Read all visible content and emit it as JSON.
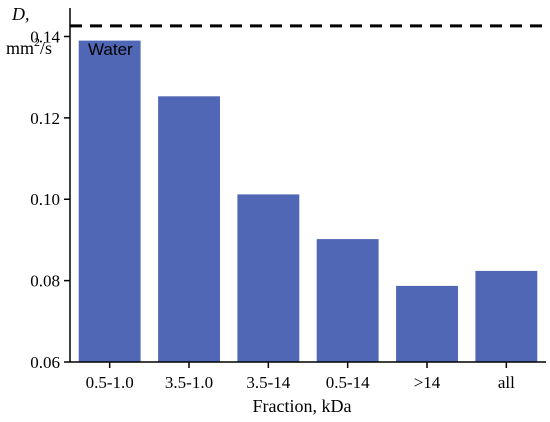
{
  "chart_data": {
    "type": "bar",
    "categories": [
      "0.5-1.0",
      "3.5-1.0",
      "3.5-14",
      "0.5-14",
      ">14",
      "all"
    ],
    "values": [
      0.139,
      0.1253,
      0.1012,
      0.0902,
      0.0787,
      0.0824
    ],
    "ylim": [
      0.06,
      0.147
    ],
    "yticks": [
      "0.06",
      "0.08",
      "0.10",
      "0.12",
      "0.14"
    ],
    "xlabel": "Fraction, kDa",
    "ylabel_symbol": "D,",
    "ylabel_unit_base": "mm",
    "ylabel_unit_exp": "2",
    "ylabel_unit_rest": "/s",
    "reference_line": {
      "label": "Water",
      "value": 0.1426
    },
    "bar_color": "#4f67b5",
    "grid": false
  }
}
